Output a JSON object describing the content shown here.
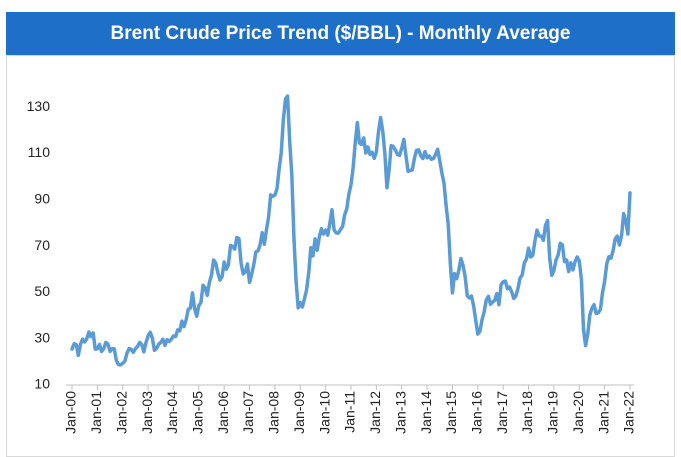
{
  "chart_data": {
    "type": "line",
    "title": "Brent Crude Price Trend ($/BBL) - Monthly Average",
    "color": "#5b9bd5",
    "ylim": [
      10,
      140
    ],
    "yticks": [
      10,
      30,
      50,
      70,
      90,
      110,
      130
    ],
    "grid": false,
    "categories": [
      "Jan-00",
      null,
      null,
      null,
      null,
      null,
      null,
      null,
      null,
      null,
      null,
      null,
      "Jan-01",
      null,
      null,
      null,
      null,
      null,
      null,
      null,
      null,
      null,
      null,
      null,
      "Jan-02",
      null,
      null,
      null,
      null,
      null,
      null,
      null,
      null,
      null,
      null,
      null,
      "Jan-03",
      null,
      null,
      null,
      null,
      null,
      null,
      null,
      null,
      null,
      null,
      null,
      "Jan-04",
      null,
      null,
      null,
      null,
      null,
      null,
      null,
      null,
      null,
      null,
      null,
      "Jan-05",
      null,
      null,
      null,
      null,
      null,
      null,
      null,
      null,
      null,
      null,
      null,
      "Jan-06",
      null,
      null,
      null,
      null,
      null,
      null,
      null,
      null,
      null,
      null,
      null,
      "Jan-07",
      null,
      null,
      null,
      null,
      null,
      null,
      null,
      null,
      null,
      null,
      null,
      "Jan-08",
      null,
      null,
      null,
      null,
      null,
      null,
      null,
      null,
      null,
      null,
      null,
      "Jan-09",
      null,
      null,
      null,
      null,
      null,
      null,
      null,
      null,
      null,
      null,
      null,
      "Jan-10",
      null,
      null,
      null,
      null,
      null,
      null,
      null,
      null,
      null,
      null,
      null,
      "Jan-11",
      null,
      null,
      null,
      null,
      null,
      null,
      null,
      null,
      null,
      null,
      null,
      "Jan-12",
      null,
      null,
      null,
      null,
      null,
      null,
      null,
      null,
      null,
      null,
      null,
      "Jan-13",
      null,
      null,
      null,
      null,
      null,
      null,
      null,
      null,
      null,
      null,
      null,
      "Jan-14",
      null,
      null,
      null,
      null,
      null,
      null,
      null,
      null,
      null,
      null,
      null,
      "Jan-15",
      null,
      null,
      null,
      null,
      null,
      null,
      null,
      null,
      null,
      null,
      null,
      "Jan-16",
      null,
      null,
      null,
      null,
      null,
      null,
      null,
      null,
      null,
      null,
      null,
      "Jan-17",
      null,
      null,
      null,
      null,
      null,
      null,
      null,
      null,
      null,
      null,
      null,
      "Jan-18",
      null,
      null,
      null,
      null,
      null,
      null,
      null,
      null,
      null,
      null,
      null,
      "Jan-19",
      null,
      null,
      null,
      null,
      null,
      null,
      null,
      null,
      null,
      null,
      null,
      "Jan-20",
      null,
      null,
      null,
      null,
      null,
      null,
      null,
      null,
      null,
      null,
      null,
      "Jan-21",
      null,
      null,
      null,
      null,
      null,
      null,
      null,
      null,
      null,
      null,
      null,
      "Jan-22"
    ],
    "values": [
      25.5,
      27.8,
      27.5,
      22.8,
      27.6,
      29.8,
      28.6,
      30.0,
      32.9,
      30.9,
      32.5,
      25.5,
      25.6,
      27.5,
      24.5,
      25.6,
      28.4,
      27.7,
      24.5,
      25.7,
      25.6,
      20.5,
      18.8,
      18.7,
      19.4,
      20.3,
      23.7,
      25.7,
      25.4,
      24.1,
      25.7,
      26.6,
      28.4,
      27.5,
      24.3,
      28.3,
      31.2,
      32.8,
      30.3,
      25.0,
      25.8,
      27.6,
      28.4,
      29.8,
      27.1,
      29.6,
      28.8,
      29.8,
      31.2,
      30.9,
      33.8,
      33.4,
      37.6,
      35.2,
      38.2,
      42.7,
      43.2,
      49.8,
      43.1,
      39.7,
      44.3,
      45.6,
      53.1,
      51.9,
      48.7,
      54.3,
      57.5,
      64.0,
      62.7,
      58.5,
      55.3,
      56.8,
      63.1,
      60.0,
      62.0,
      70.3,
      69.8,
      68.7,
      73.7,
      73.2,
      62.5,
      58.0,
      58.9,
      62.3,
      54.3,
      57.8,
      62.0,
      67.5,
      67.9,
      70.6,
      75.8,
      70.8,
      77.0,
      82.5,
      92.1,
      91.5,
      92.0,
      94.8,
      103.3,
      110.4,
      124.6,
      133.5,
      134.8,
      115.2,
      100.8,
      73.6,
      55.0,
      43.3,
      45.6,
      43.7,
      47.3,
      51.2,
      58.6,
      69.3,
      65.8,
      73.1,
      68.2,
      73.9,
      77.5,
      75.2,
      76.9,
      74.7,
      79.9,
      85.7,
      77.0,
      75.7,
      75.6,
      77.1,
      78.4,
      83.5,
      86.1,
      92.5,
      96.5,
      103.7,
      114.6,
      123.3,
      114.5,
      113.9,
      116.7,
      110.2,
      112.8,
      109.6,
      110.5,
      107.9,
      110.7,
      119.3,
      125.5,
      119.8,
      110.3,
      95.2,
      102.6,
      113.4,
      113.0,
      111.5,
      109.5,
      109.2,
      112.3,
      116.1,
      109.0,
      102.3,
      102.6,
      102.9,
      107.9,
      111.3,
      111.6,
      109.1,
      107.8,
      110.8,
      108.1,
      108.9,
      107.5,
      107.8,
      109.5,
      111.8,
      106.8,
      101.6,
      97.1,
      87.4,
      79.4,
      62.3,
      49.8,
      58.1,
      55.9,
      59.5,
      64.6,
      61.7,
      56.8,
      48.5,
      47.6,
      48.4,
      44.3,
      38.0,
      32.0,
      33.2,
      38.2,
      41.6,
      46.7,
      48.3,
      44.9,
      45.8,
      46.6,
      49.5,
      44.7,
      53.3,
      54.6,
      54.9,
      51.6,
      52.3,
      50.3,
      47.4,
      48.5,
      51.7,
      56.2,
      57.5,
      62.7,
      64.4,
      69.1,
      65.3,
      66.0,
      72.1,
      76.9,
      74.4,
      74.3,
      72.5,
      78.9,
      81.0,
      64.8,
      57.4,
      59.4,
      64.0,
      66.1,
      71.2,
      70.5,
      63.3,
      64.0,
      59.0,
      62.8,
      59.7,
      63.2,
      65.3,
      63.6,
      55.7,
      34.0,
      27.0,
      32.0,
      40.3,
      43.2,
      44.7,
      40.9,
      41.2,
      42.7,
      49.9,
      54.8,
      62.3,
      65.4,
      64.8,
      68.0,
      73.1,
      74.3,
      70.5,
      74.5,
      84.0,
      80.9,
      75.2,
      93.0
    ]
  }
}
